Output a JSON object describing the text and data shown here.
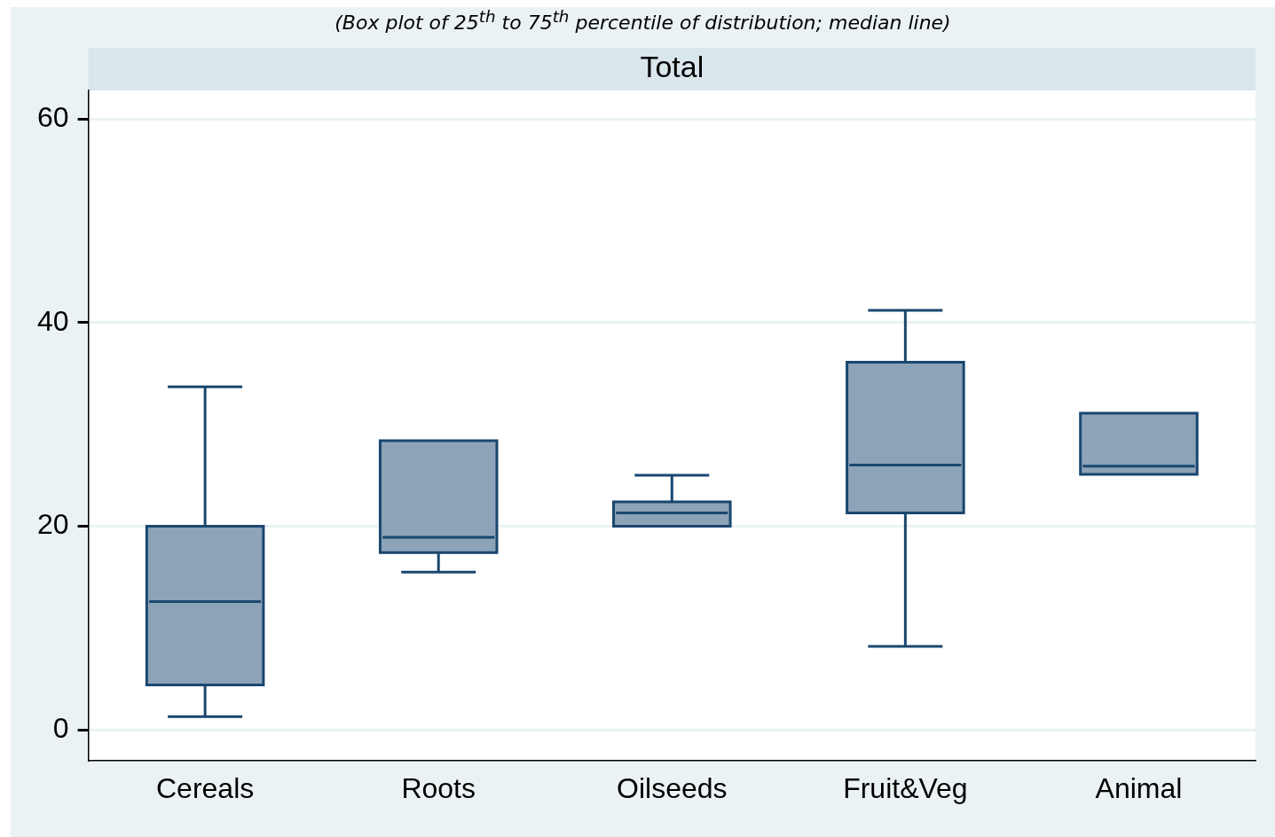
{
  "chart_data": {
    "type": "box",
    "title": "Total",
    "subtitle": "(Box plot of 25$^{th}$ to 75$^{th}$ percentile of distribution; median line)",
    "categories": [
      "Cereals",
      "Roots",
      "Oilseeds",
      "Fruit&Veg",
      "Animal"
    ],
    "color": "#8da3b7",
    "boxes": [
      {
        "low": 1.3,
        "q1": 4.4,
        "median": 12.6,
        "q3": 20.0,
        "high": 33.7
      },
      {
        "low": 15.5,
        "q1": 17.4,
        "median": 18.9,
        "q3": 28.4,
        "high": 28.4
      },
      {
        "low": 20.0,
        "q1": 20.0,
        "median": 21.3,
        "q3": 22.4,
        "high": 25.0
      },
      {
        "low": 8.2,
        "q1": 21.3,
        "median": 26.0,
        "q3": 36.1,
        "high": 41.2
      },
      {
        "low": 25.1,
        "q1": 25.1,
        "median": 25.9,
        "q3": 31.1,
        "high": 31.1
      }
    ],
    "ylim": [
      -3,
      62.8
    ],
    "yticks": [
      0,
      20,
      40,
      60
    ],
    "grid": "y"
  }
}
